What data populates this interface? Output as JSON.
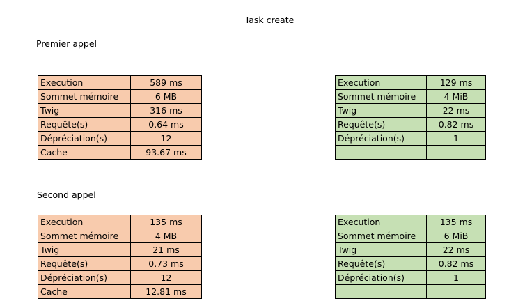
{
  "title": "Task create",
  "sections": [
    {
      "heading": "Premier appel",
      "left_table": [
        {
          "label": "Execution",
          "value": "589 ms"
        },
        {
          "label": "Sommet mémoire",
          "value": "6 MB"
        },
        {
          "label": "Twig",
          "value": "316 ms"
        },
        {
          "label": "Requête(s)",
          "value": "0.64 ms"
        },
        {
          "label": "Dépréciation(s)",
          "value": "12"
        },
        {
          "label": "Cache",
          "value": "93.67 ms"
        }
      ],
      "right_table": [
        {
          "label": "Execution",
          "value": "129 ms"
        },
        {
          "label": "Sommet mémoire",
          "value": "4 MiB"
        },
        {
          "label": "Twig",
          "value": "22 ms"
        },
        {
          "label": "Requête(s)",
          "value": "0.82 ms"
        },
        {
          "label": "Dépréciation(s)",
          "value": "1"
        },
        {
          "label": "",
          "value": ""
        }
      ]
    },
    {
      "heading": "Second appel",
      "left_table": [
        {
          "label": "Execution",
          "value": "135 ms"
        },
        {
          "label": "Sommet mémoire",
          "value": "4 MB"
        },
        {
          "label": "Twig",
          "value": "21 ms"
        },
        {
          "label": "Requête(s)",
          "value": "0.73 ms"
        },
        {
          "label": "Dépréciation(s)",
          "value": "12"
        },
        {
          "label": "Cache",
          "value": "12.81 ms"
        }
      ],
      "right_table": [
        {
          "label": "Execution",
          "value": "135 ms"
        },
        {
          "label": "Sommet mémoire",
          "value": "6 MiB"
        },
        {
          "label": "Twig",
          "value": "22 ms"
        },
        {
          "label": "Requête(s)",
          "value": "0.82 ms"
        },
        {
          "label": "Dépréciation(s)",
          "value": "1"
        },
        {
          "label": "",
          "value": ""
        }
      ]
    }
  ],
  "colors": {
    "left_fill": "#f8cbad",
    "right_fill": "#c6e0b4",
    "border": "#000000"
  }
}
